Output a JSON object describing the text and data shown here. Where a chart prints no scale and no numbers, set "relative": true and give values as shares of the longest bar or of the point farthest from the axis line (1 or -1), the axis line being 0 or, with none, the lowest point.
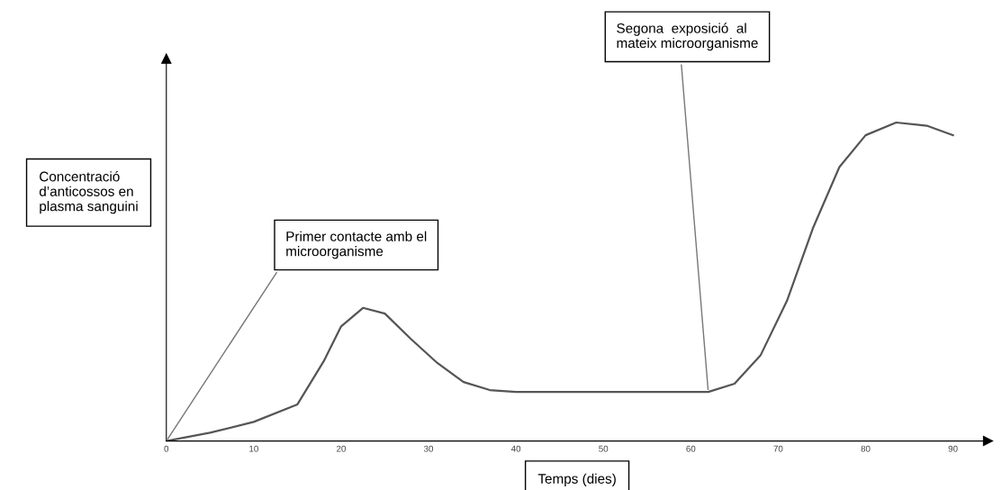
{
  "chart_data": {
    "type": "line",
    "relative": true,
    "xlabel": "Temps (dies)",
    "ylabel": "Concentració\nd’anticossos en\nplasma sanguini",
    "x": [
      0,
      5,
      10,
      15,
      18,
      20,
      22.5,
      25,
      28,
      31,
      34,
      37,
      40,
      50,
      62,
      65,
      68,
      71,
      74,
      77,
      80,
      83.5,
      87,
      90
    ],
    "series": [
      {
        "color": "#555555",
        "values": [
          0,
          0.026,
          0.06,
          0.115,
          0.25,
          0.36,
          0.418,
          0.4,
          0.32,
          0.245,
          0.185,
          0.16,
          0.154,
          0.154,
          0.154,
          0.18,
          0.27,
          0.44,
          0.67,
          0.86,
          0.96,
          1.0,
          0.99,
          0.96
        ]
      }
    ],
    "xlim": [
      0,
      94
    ],
    "xticks": [
      0,
      10,
      20,
      30,
      40,
      50,
      60,
      70,
      80,
      90
    ],
    "grid": false,
    "marker": "none",
    "line_style": "solid",
    "annotations": [
      {
        "text": "Primer contacte amb el\nmicroorganisme",
        "x": 0,
        "y": 0
      },
      {
        "text": "Segona  exposició  al\nmateix microorganisme",
        "x": 62,
        "y": 0.154
      }
    ]
  }
}
